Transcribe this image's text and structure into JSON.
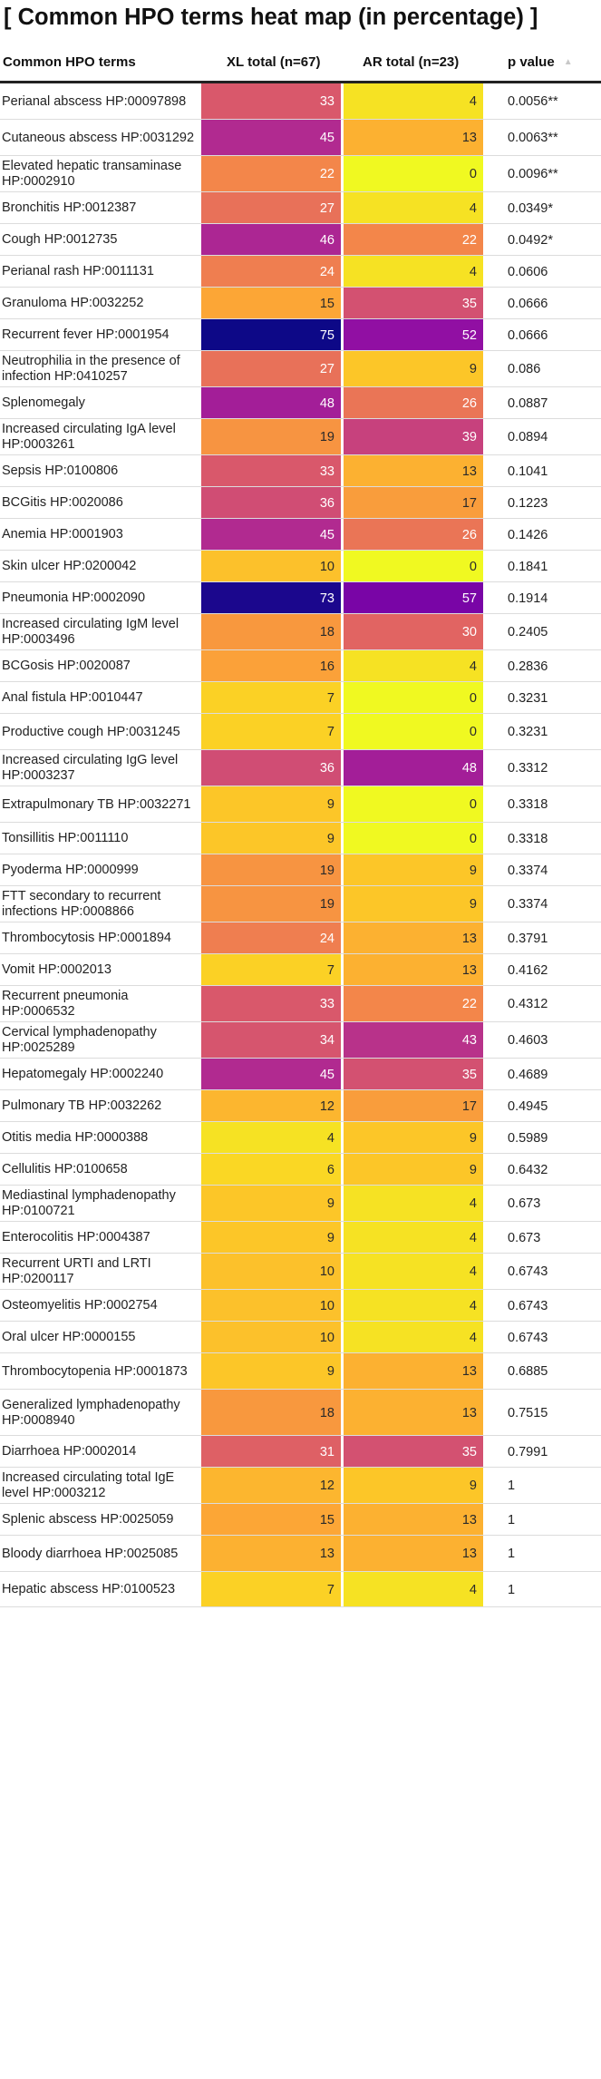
{
  "chart_data": {
    "type": "heatmap",
    "title": "[ Common HPO terms heat map (in percentage) ]",
    "columns": [
      "Common HPO terms",
      "XL total (n=67)",
      "AR total (n=23)",
      "p value"
    ],
    "sort": {
      "column": "p value",
      "direction": "ascending",
      "icon": "sort-ascending-icon"
    },
    "colorscale": "plasma",
    "value_range": [
      0,
      75
    ],
    "rows": [
      {
        "term": "Perianal abscess HP:00097898",
        "xl": 33,
        "ar": 4,
        "p": "0.0056**"
      },
      {
        "term": "Cutaneous abscess HP:0031292",
        "xl": 45,
        "ar": 13,
        "p": "0.0063**"
      },
      {
        "term": "Elevated hepatic transaminase HP:0002910",
        "xl": 22,
        "ar": 0,
        "p": "0.0096**"
      },
      {
        "term": "Bronchitis HP:0012387",
        "xl": 27,
        "ar": 4,
        "p": "0.0349*"
      },
      {
        "term": "Cough HP:0012735",
        "xl": 46,
        "ar": 22,
        "p": "0.0492*"
      },
      {
        "term": "Perianal rash HP:0011131",
        "xl": 24,
        "ar": 4,
        "p": "0.0606"
      },
      {
        "term": "Granuloma HP:0032252",
        "xl": 15,
        "ar": 35,
        "p": "0.0666"
      },
      {
        "term": "Recurrent fever HP:0001954",
        "xl": 75,
        "ar": 52,
        "p": "0.0666"
      },
      {
        "term": "Neutrophilia in the presence of infection HP:0410257",
        "xl": 27,
        "ar": 9,
        "p": "0.086"
      },
      {
        "term": "Splenomegaly",
        "xl": 48,
        "ar": 26,
        "p": "0.0887"
      },
      {
        "term": "Increased circulating IgA level HP:0003261",
        "xl": 19,
        "ar": 39,
        "p": "0.0894"
      },
      {
        "term": "Sepsis HP:0100806",
        "xl": 33,
        "ar": 13,
        "p": "0.1041"
      },
      {
        "term": "BCGitis HP:0020086",
        "xl": 36,
        "ar": 17,
        "p": "0.1223"
      },
      {
        "term": "Anemia HP:0001903",
        "xl": 45,
        "ar": 26,
        "p": "0.1426"
      },
      {
        "term": "Skin ulcer HP:0200042",
        "xl": 10,
        "ar": 0,
        "p": "0.1841"
      },
      {
        "term": "Pneumonia HP:0002090",
        "xl": 73,
        "ar": 57,
        "p": "0.1914"
      },
      {
        "term": "Increased circulating IgM level HP:0003496",
        "xl": 18,
        "ar": 30,
        "p": "0.2405"
      },
      {
        "term": "BCGosis HP:0020087",
        "xl": 16,
        "ar": 4,
        "p": "0.2836"
      },
      {
        "term": "Anal fistula HP:0010447",
        "xl": 7,
        "ar": 0,
        "p": "0.3231"
      },
      {
        "term": "Productive cough HP:0031245",
        "xl": 7,
        "ar": 0,
        "p": "0.3231"
      },
      {
        "term": "Increased circulating IgG level HP:0003237",
        "xl": 36,
        "ar": 48,
        "p": "0.3312"
      },
      {
        "term": "Extrapulmonary TB HP:0032271",
        "xl": 9,
        "ar": 0,
        "p": "0.3318"
      },
      {
        "term": "Tonsillitis HP:0011110",
        "xl": 9,
        "ar": 0,
        "p": "0.3318"
      },
      {
        "term": "Pyoderma HP:0000999",
        "xl": 19,
        "ar": 9,
        "p": "0.3374"
      },
      {
        "term": "FTT secondary to recurrent infections HP:0008866",
        "xl": 19,
        "ar": 9,
        "p": "0.3374"
      },
      {
        "term": "Thrombocytosis HP:0001894",
        "xl": 24,
        "ar": 13,
        "p": "0.3791"
      },
      {
        "term": "Vomit HP:0002013",
        "xl": 7,
        "ar": 13,
        "p": "0.4162"
      },
      {
        "term": "Recurrent pneumonia HP:0006532",
        "xl": 33,
        "ar": 22,
        "p": "0.4312"
      },
      {
        "term": "Cervical lymphadenopathy HP:0025289",
        "xl": 34,
        "ar": 43,
        "p": "0.4603"
      },
      {
        "term": "Hepatomegaly HP:0002240",
        "xl": 45,
        "ar": 35,
        "p": "0.4689"
      },
      {
        "term": "Pulmonary TB HP:0032262",
        "xl": 12,
        "ar": 17,
        "p": "0.4945"
      },
      {
        "term": "Otitis media HP:0000388",
        "xl": 4,
        "ar": 9,
        "p": "0.5989"
      },
      {
        "term": "Cellulitis HP:0100658",
        "xl": 6,
        "ar": 9,
        "p": "0.6432"
      },
      {
        "term": "Mediastinal lymphadenopathy HP:0100721",
        "xl": 9,
        "ar": 4,
        "p": "0.673"
      },
      {
        "term": "Enterocolitis HP:0004387",
        "xl": 9,
        "ar": 4,
        "p": "0.673"
      },
      {
        "term": "Recurrent URTI and LRTI HP:0200117",
        "xl": 10,
        "ar": 4,
        "p": "0.6743"
      },
      {
        "term": "Osteomyelitis HP:0002754",
        "xl": 10,
        "ar": 4,
        "p": "0.6743"
      },
      {
        "term": "Oral ulcer HP:0000155",
        "xl": 10,
        "ar": 4,
        "p": "0.6743"
      },
      {
        "term": "Thrombocytopenia HP:0001873",
        "xl": 9,
        "ar": 13,
        "p": "0.6885"
      },
      {
        "term": "Generalized lymphadenopathy HP:0008940",
        "xl": 18,
        "ar": 13,
        "p": "0.7515"
      },
      {
        "term": "Diarrhoea HP:0002014",
        "xl": 31,
        "ar": 35,
        "p": "0.7991"
      },
      {
        "term": "Increased circulating total IgE level HP:0003212",
        "xl": 12,
        "ar": 9,
        "p": "1"
      },
      {
        "term": "Splenic abscess HP:0025059",
        "xl": 15,
        "ar": 13,
        "p": "1"
      },
      {
        "term": "Bloody diarrhoea HP:0025085",
        "xl": 13,
        "ar": 13,
        "p": "1"
      },
      {
        "term": "Hepatic abscess HP:0100523",
        "xl": 7,
        "ar": 4,
        "p": "1"
      }
    ]
  }
}
